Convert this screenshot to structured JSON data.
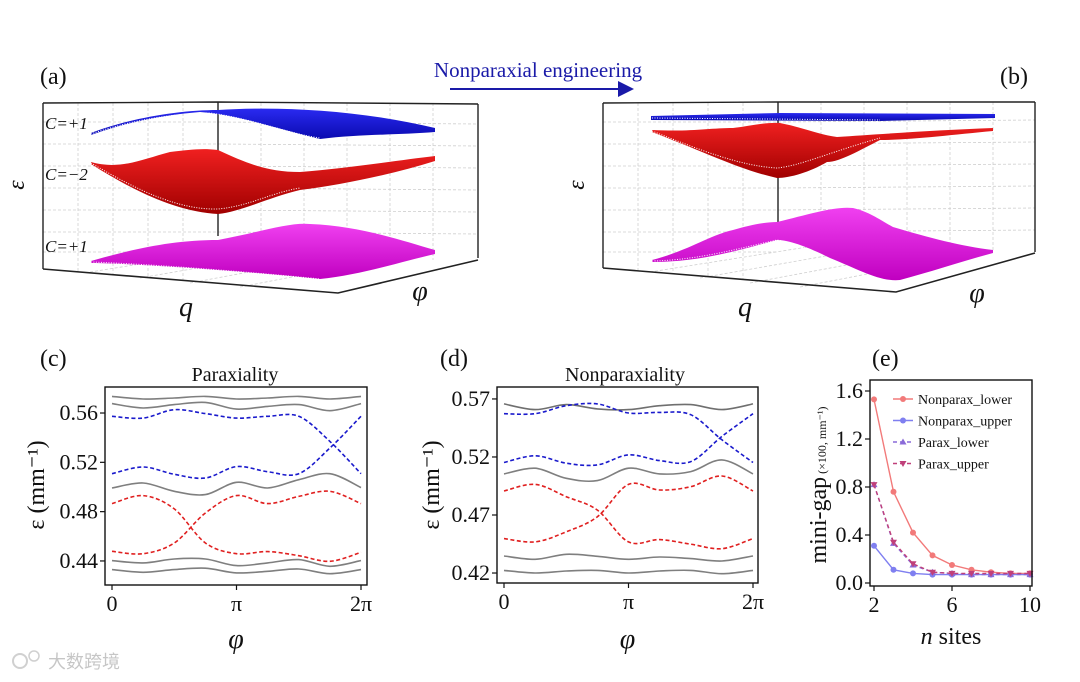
{
  "figure": {
    "arrow_title": "Nonparaxial engineering",
    "watermark": "大数跨境",
    "colors": {
      "title_blue": "#1a1aa8",
      "band_blue": "#1414d2",
      "band_red": "#e41a1a",
      "band_red_dark": "#a00000",
      "band_magenta": "#e010e0"
    }
  },
  "panel_a": {
    "label": "(a)",
    "zlabel": "ε",
    "xlabel": "q",
    "ylabel": "φ",
    "bands": [
      {
        "chern": "C=+1",
        "color": "blue"
      },
      {
        "chern": "C=−2",
        "color": "red"
      },
      {
        "chern": "C=+1",
        "color": "magenta"
      }
    ]
  },
  "panel_b": {
    "label": "(b)",
    "zlabel": "ε",
    "xlabel": "q",
    "ylabel": "φ"
  },
  "chart_data": [
    {
      "panel_label": "(c)",
      "type": "line",
      "title": "Paraxiality",
      "xlabel": "φ",
      "ylabel": "ε (mm⁻¹)",
      "x_units": "π",
      "x": [
        0,
        0.25,
        0.5,
        0.75,
        1,
        1.25,
        1.5,
        1.75,
        2
      ],
      "x_ticks": [
        {
          "value": 0,
          "label": "0"
        },
        {
          "value": 1,
          "label": "π"
        },
        {
          "value": 2,
          "label": "2π"
        }
      ],
      "y_ticks": [
        {
          "value": 0.44,
          "label": "0.44"
        },
        {
          "value": 0.48,
          "label": "0.48"
        },
        {
          "value": 0.52,
          "label": "0.52"
        },
        {
          "value": 0.56,
          "label": "0.56"
        }
      ],
      "ylim": [
        0.4205,
        0.5811
      ],
      "series": [
        {
          "name": "bulk_top_1",
          "style": "solid",
          "color": "#7f7f7f",
          "values": [
            0.5735,
            0.5714,
            0.5722,
            0.5735,
            0.5714,
            0.5722,
            0.5735,
            0.5714,
            0.5735
          ]
        },
        {
          "name": "bulk_top_2",
          "style": "solid",
          "color": "#7f7f7f",
          "values": [
            0.5676,
            0.5641,
            0.5668,
            0.5686,
            0.5632,
            0.5654,
            0.5668,
            0.5619,
            0.5676
          ]
        },
        {
          "name": "edge_upper_a",
          "style": "dashed",
          "color": "#1a1acc",
          "values": [
            0.5573,
            0.5559,
            0.5627,
            0.5595,
            0.5559,
            0.5573,
            0.5573,
            0.537,
            0.5108
          ]
        },
        {
          "name": "edge_upper_b",
          "style": "dashed",
          "color": "#1a1acc",
          "values": [
            0.5108,
            0.5162,
            0.5103,
            0.5073,
            0.5165,
            0.5124,
            0.5108,
            0.5316,
            0.5573
          ]
        },
        {
          "name": "bulk_mid",
          "style": "solid",
          "color": "#7f7f7f",
          "values": [
            0.4992,
            0.5032,
            0.4965,
            0.4938,
            0.5038,
            0.4992,
            0.5059,
            0.5108,
            0.4995
          ]
        },
        {
          "name": "edge_lower_a",
          "style": "dashed",
          "color": "#e02020",
          "values": [
            0.4865,
            0.493,
            0.4822,
            0.4546,
            0.4459,
            0.4476,
            0.4443,
            0.4397,
            0.447
          ]
        },
        {
          "name": "edge_lower_b",
          "style": "dashed",
          "color": "#e02020",
          "values": [
            0.4478,
            0.4459,
            0.4546,
            0.4789,
            0.493,
            0.4865,
            0.4924,
            0.4965,
            0.4865
          ]
        },
        {
          "name": "bulk_low_1",
          "style": "solid",
          "color": "#7f7f7f",
          "values": [
            0.4403,
            0.4384,
            0.4416,
            0.4416,
            0.4362,
            0.4384,
            0.4411,
            0.4357,
            0.4403
          ]
        },
        {
          "name": "bulk_low_2",
          "style": "solid",
          "color": "#7f7f7f",
          "values": [
            0.433,
            0.4308,
            0.433,
            0.4341,
            0.4303,
            0.4316,
            0.4335,
            0.4297,
            0.433
          ]
        }
      ]
    },
    {
      "panel_label": "(d)",
      "type": "line",
      "title": "Nonparaxiality",
      "xlabel": "φ",
      "ylabel": "ε (mm⁻¹)",
      "x_units": "π",
      "x": [
        0,
        0.25,
        0.5,
        0.75,
        1,
        1.25,
        1.5,
        1.75,
        2
      ],
      "x_ticks": [
        {
          "value": 0,
          "label": "0"
        },
        {
          "value": 1,
          "label": "π"
        },
        {
          "value": 2,
          "label": "2π"
        }
      ],
      "y_ticks": [
        {
          "value": 0.42,
          "label": "0.42"
        },
        {
          "value": 0.47,
          "label": "0.47"
        },
        {
          "value": 0.52,
          "label": "0.52"
        },
        {
          "value": 0.57,
          "label": "0.57"
        }
      ],
      "ylim": [
        0.4114,
        0.5803
      ],
      "series": [
        {
          "name": "bulk_top",
          "style": "solid",
          "color": "#6f6f6f",
          "values": [
            0.5657,
            0.5608,
            0.5651,
            0.5614,
            0.5608,
            0.5642,
            0.5651,
            0.5608,
            0.5657
          ]
        },
        {
          "name": "edge_upper_a",
          "style": "dashed",
          "color": "#1a1acc",
          "values": [
            0.5573,
            0.5573,
            0.5642,
            0.5657,
            0.5579,
            0.5584,
            0.5564,
            0.5348,
            0.5152
          ]
        },
        {
          "name": "edge_upper_b",
          "style": "dashed",
          "color": "#1a1acc",
          "values": [
            0.5152,
            0.521,
            0.5146,
            0.5132,
            0.5218,
            0.5169,
            0.516,
            0.5377,
            0.5573
          ]
        },
        {
          "name": "bulk_mid",
          "style": "solid",
          "color": "#7f7f7f",
          "values": [
            0.5054,
            0.5103,
            0.5016,
            0.4996,
            0.5103,
            0.5054,
            0.5074,
            0.5175,
            0.5054
          ]
        },
        {
          "name": "edge_lower_a",
          "style": "dashed",
          "color": "#e02020",
          "values": [
            0.4907,
            0.4964,
            0.4858,
            0.4742,
            0.4468,
            0.4488,
            0.4448,
            0.441,
            0.4497
          ]
        },
        {
          "name": "edge_lower_b",
          "style": "dashed",
          "color": "#e02020",
          "values": [
            0.4497,
            0.4468,
            0.4555,
            0.4685,
            0.4964,
            0.4915,
            0.4944,
            0.5036,
            0.4907
          ]
        },
        {
          "name": "bulk_low_1",
          "style": "solid",
          "color": "#7f7f7f",
          "values": [
            0.4347,
            0.4318,
            0.4361,
            0.4344,
            0.4318,
            0.4338,
            0.4324,
            0.4304,
            0.4347
          ]
        },
        {
          "name": "bulk_low_2",
          "style": "solid",
          "color": "#7f7f7f",
          "values": [
            0.4223,
            0.42,
            0.4217,
            0.4223,
            0.42,
            0.4217,
            0.4223,
            0.4194,
            0.4223
          ]
        }
      ]
    },
    {
      "panel_label": "(e)",
      "type": "line",
      "title": "",
      "xlabel_italic": "n",
      "xlabel": "sites",
      "ylabel": "mini-gap",
      "ylabel_unit": "(×100, mm⁻¹)",
      "x": [
        2,
        3,
        4,
        5,
        6,
        7,
        8,
        9,
        10
      ],
      "xlim": [
        2,
        10
      ],
      "ylim": [
        0,
        1.6
      ],
      "x_ticks": [
        {
          "value": 2,
          "label": "2"
        },
        {
          "value": 6,
          "label": "6"
        },
        {
          "value": 10,
          "label": "10"
        }
      ],
      "y_ticks": [
        {
          "value": 0,
          "label": "0.0"
        },
        {
          "value": 0.4,
          "label": "0.4"
        },
        {
          "value": 0.8,
          "label": "0.8"
        },
        {
          "value": 1.2,
          "label": "1.2"
        },
        {
          "value": 1.6,
          "label": "1.6"
        }
      ],
      "legend_position": "top-right",
      "series": [
        {
          "name": "Nonparax_lower",
          "style": "solid",
          "marker": "circle",
          "color": "#f27a7a",
          "values": [
            1.53,
            0.76,
            0.42,
            0.23,
            0.15,
            0.11,
            0.09,
            0.08,
            0.08
          ]
        },
        {
          "name": "Nonparax_upper",
          "style": "solid",
          "marker": "circle",
          "color": "#7f7ff0",
          "values": [
            0.31,
            0.11,
            0.08,
            0.07,
            0.07,
            0.07,
            0.07,
            0.07,
            0.07
          ]
        },
        {
          "name": "Parax_lower",
          "style": "dashed",
          "marker": "triangle-up",
          "color": "#8a6ad8",
          "values": [
            0.82,
            0.33,
            0.15,
            0.09,
            0.08,
            0.07,
            0.07,
            0.07,
            0.07
          ]
        },
        {
          "name": "Parax_upper",
          "style": "dashed",
          "marker": "triangle-down",
          "color": "#c0407a",
          "values": [
            0.82,
            0.34,
            0.16,
            0.09,
            0.08,
            0.08,
            0.08,
            0.08,
            0.08
          ]
        }
      ]
    }
  ]
}
